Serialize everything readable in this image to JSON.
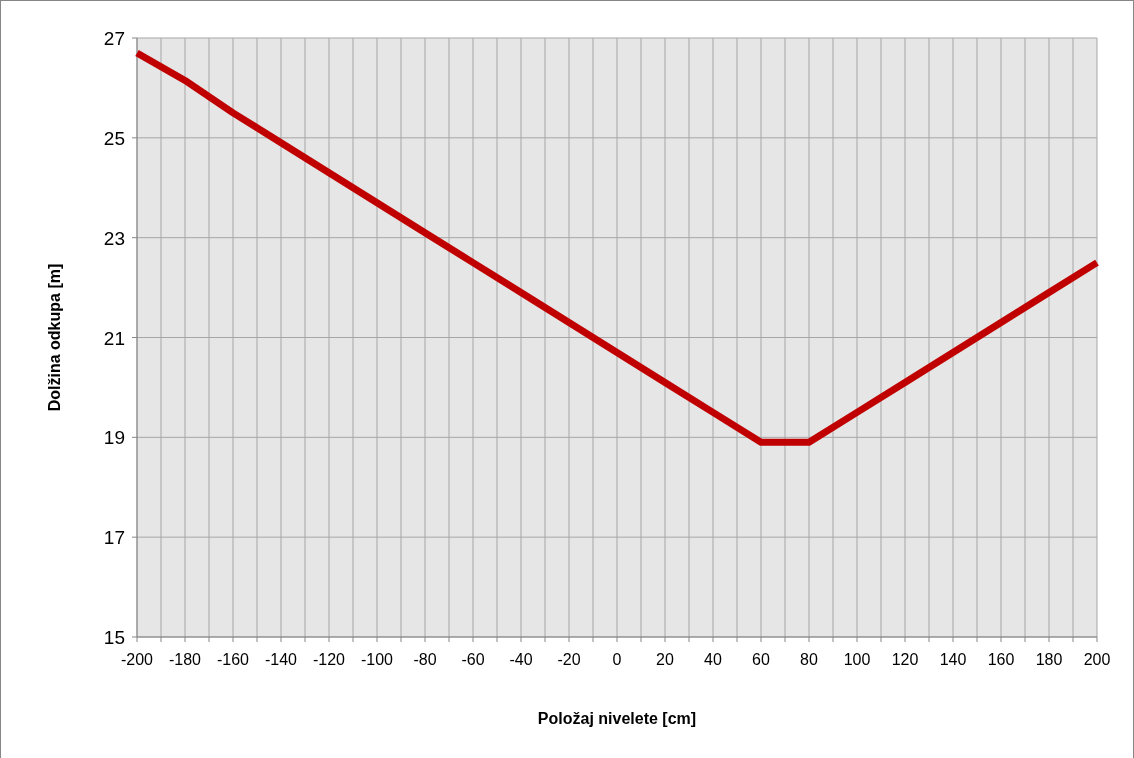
{
  "chart_data": {
    "type": "line",
    "xlabel": "Položaj nivelete [cm]",
    "ylabel": "Dolžina odkupa [m]",
    "x": [
      -200,
      -180,
      -160,
      -140,
      -120,
      -100,
      -80,
      -60,
      -40,
      -20,
      0,
      20,
      40,
      60,
      80,
      100,
      120,
      140,
      160,
      180,
      200
    ],
    "series": [
      {
        "color": "#c00000",
        "values": [
          26.7,
          26.15,
          25.5,
          24.9,
          24.3,
          23.7,
          23.1,
          22.5,
          21.9,
          21.3,
          20.7,
          20.1,
          19.5,
          18.9,
          18.9,
          19.5,
          20.1,
          20.7,
          21.3,
          21.9,
          22.5
        ]
      }
    ],
    "xlim": [
      -200,
      200
    ],
    "xticks": [
      -200,
      {
        "value": -190,
        "label": null
      },
      -180,
      {
        "value": -170,
        "label": null
      },
      -160,
      {
        "value": -150,
        "label": null
      },
      -140,
      {
        "value": -130,
        "label": null
      },
      -120,
      {
        "value": -110,
        "label": null
      },
      -100,
      {
        "value": -90,
        "label": null
      },
      -80,
      {
        "value": -70,
        "label": null
      },
      -60,
      {
        "value": -50,
        "label": null
      },
      -40,
      {
        "value": -30,
        "label": null
      },
      -20,
      {
        "value": -10,
        "label": null
      },
      0,
      {
        "value": 10,
        "label": null
      },
      20,
      {
        "value": 30,
        "label": null
      },
      40,
      {
        "value": 50,
        "label": null
      },
      60,
      {
        "value": 70,
        "label": null
      },
      80,
      {
        "value": 90,
        "label": null
      },
      100,
      {
        "value": 110,
        "label": null
      },
      120,
      {
        "value": 130,
        "label": null
      },
      140,
      {
        "value": 150,
        "label": null
      },
      160,
      {
        "value": 170,
        "label": null
      },
      180,
      {
        "value": 190,
        "label": null
      },
      200
    ],
    "ylim": [
      15,
      27
    ],
    "yticks": [
      15,
      17,
      19,
      21,
      23,
      25,
      27
    ],
    "grid": true,
    "marker": "none",
    "line_style": "solid"
  }
}
